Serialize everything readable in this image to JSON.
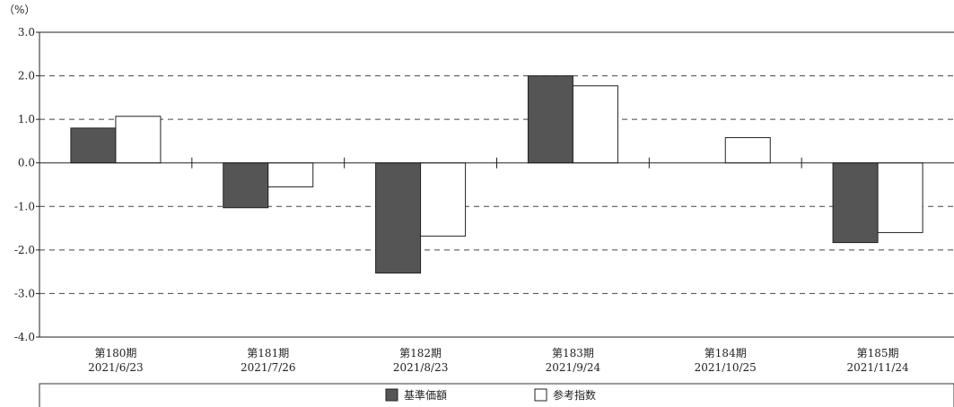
{
  "chart_data": {
    "type": "bar",
    "unit_label": "（%）",
    "ylim": [
      -4.0,
      3.0
    ],
    "yticks": [
      "3.0",
      "2.0",
      "1.0",
      "0.0",
      "-1.0",
      "-2.0",
      "-3.0",
      "-4.0"
    ],
    "ytick_values": [
      3,
      2,
      1,
      0,
      -1,
      -2,
      -3,
      -4
    ],
    "categories": [
      {
        "period": "第180期",
        "date": "2021/6/23"
      },
      {
        "period": "第181期",
        "date": "2021/7/26"
      },
      {
        "period": "第182期",
        "date": "2021/8/23"
      },
      {
        "period": "第183期",
        "date": "2021/9/24"
      },
      {
        "period": "第184期",
        "date": "2021/10/25"
      },
      {
        "period": "第185期",
        "date": "2021/11/24"
      }
    ],
    "series": [
      {
        "name": "基準価額",
        "color": "#555555",
        "values": [
          0.8,
          -1.03,
          -2.53,
          2.0,
          0.0,
          -1.83
        ]
      },
      {
        "name": "参考指数",
        "color": "#ffffff",
        "values": [
          1.07,
          -0.55,
          -1.68,
          1.77,
          0.58,
          -1.6
        ]
      }
    ],
    "grid": "dashed horizontal",
    "legend_position": "bottom"
  }
}
